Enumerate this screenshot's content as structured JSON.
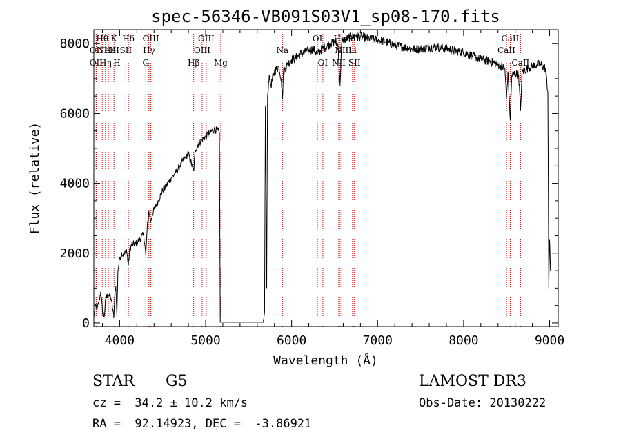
{
  "chart_data": {
    "type": "line",
    "title": "spec-56346-VB091S03V1_sp08-170.fits",
    "xlabel": "Wavelength (Å)",
    "ylabel": "Flux (relative)",
    "xlim": [
      3700,
      9100
    ],
    "ylim": [
      -100,
      8400
    ],
    "x_ticks": [
      4000,
      5000,
      6000,
      7000,
      8000,
      9000
    ],
    "y_ticks": [
      0,
      2000,
      4000,
      6000,
      8000
    ],
    "line_color": "#000000",
    "marker_color": "#cc0000",
    "spectral_lines": [
      {
        "wavelength": 3727,
        "label": "OII",
        "row": 2
      },
      {
        "wavelength": 3727,
        "label": "OII",
        "row": 1
      },
      {
        "wavelength": 3798,
        "label": "Hθ",
        "row": 0
      },
      {
        "wavelength": 3835,
        "label": "Hη",
        "row": 2
      },
      {
        "wavelength": 3869,
        "label": "NeIII",
        "row": 1
      },
      {
        "wavelength": 3889,
        "label": "He",
        "row": 1
      },
      {
        "wavelength": 3934,
        "label": "K",
        "row": 0
      },
      {
        "wavelength": 3969,
        "label": "H",
        "row": 2
      },
      {
        "wavelength": 4072,
        "label": "SII",
        "row": 1
      },
      {
        "wavelength": 4102,
        "label": "Hδ",
        "row": 0
      },
      {
        "wavelength": 4304,
        "label": "G",
        "row": 2
      },
      {
        "wavelength": 4340,
        "label": "Hγ",
        "row": 1
      },
      {
        "wavelength": 4363,
        "label": "OIII",
        "row": 0
      },
      {
        "wavelength": 4861,
        "label": "Hβ",
        "row": 2
      },
      {
        "wavelength": 4959,
        "label": "OIII",
        "row": 1
      },
      {
        "wavelength": 5007,
        "label": "OIII",
        "row": 0
      },
      {
        "wavelength": 5176,
        "label": "Mg",
        "row": 2
      },
      {
        "wavelength": 5893,
        "label": "Na",
        "row": 1
      },
      {
        "wavelength": 6300,
        "label": "OI",
        "row": 0
      },
      {
        "wavelength": 6363,
        "label": "OI",
        "row": 2
      },
      {
        "wavelength": 6548,
        "label": "NII",
        "row": 2
      },
      {
        "wavelength": 6563,
        "label": "Hα",
        "row": 0
      },
      {
        "wavelength": 6583,
        "label": "NII",
        "row": 1
      },
      {
        "wavelength": 6708,
        "label": "Li",
        "row": 1
      },
      {
        "wavelength": 6716,
        "label": "SII",
        "row": 0
      },
      {
        "wavelength": 6731,
        "label": "SII",
        "row": 2
      },
      {
        "wavelength": 8498,
        "label": "CaII",
        "row": 1
      },
      {
        "wavelength": 8542,
        "label": "CaII",
        "row": 0
      },
      {
        "wavelength": 8662,
        "label": "CaII",
        "row": 2
      }
    ],
    "flux_anchor_points": [
      [
        3700,
        150
      ],
      [
        3720,
        500
      ],
      [
        3740,
        420
      ],
      [
        3760,
        600
      ],
      [
        3780,
        900
      ],
      [
        3800,
        350
      ],
      [
        3820,
        180
      ],
      [
        3840,
        700
      ],
      [
        3860,
        820
      ],
      [
        3880,
        780
      ],
      [
        3900,
        700
      ],
      [
        3920,
        400
      ],
      [
        3933,
        150
      ],
      [
        3945,
        900
      ],
      [
        3955,
        1050
      ],
      [
        3968,
        200
      ],
      [
        3980,
        1500
      ],
      [
        4000,
        1850
      ],
      [
        4020,
        2000
      ],
      [
        4050,
        1950
      ],
      [
        4080,
        2100
      ],
      [
        4102,
        1650
      ],
      [
        4120,
        2150
      ],
      [
        4150,
        2250
      ],
      [
        4200,
        2300
      ],
      [
        4250,
        2450
      ],
      [
        4280,
        2550
      ],
      [
        4304,
        1950
      ],
      [
        4320,
        2700
      ],
      [
        4340,
        3200
      ],
      [
        4360,
        2900
      ],
      [
        4380,
        3100
      ],
      [
        4400,
        3250
      ],
      [
        4450,
        3500
      ],
      [
        4500,
        3800
      ],
      [
        4550,
        3950
      ],
      [
        4600,
        4150
      ],
      [
        4650,
        4300
      ],
      [
        4700,
        4500
      ],
      [
        4750,
        4700
      ],
      [
        4800,
        4850
      ],
      [
        4861,
        4350
      ],
      [
        4880,
        4950
      ],
      [
        4920,
        5150
      ],
      [
        4960,
        5250
      ],
      [
        5000,
        5350
      ],
      [
        5050,
        5450
      ],
      [
        5100,
        5550
      ],
      [
        5150,
        5500
      ],
      [
        5160,
        5450
      ],
      [
        5170,
        20
      ],
      [
        5600,
        20
      ],
      [
        5670,
        20
      ],
      [
        5685,
        300
      ],
      [
        5695,
        6200
      ],
      [
        5710,
        1000
      ],
      [
        5720,
        6500
      ],
      [
        5740,
        7100
      ],
      [
        5760,
        6800
      ],
      [
        5800,
        7200
      ],
      [
        5850,
        7350
      ],
      [
        5880,
        7000
      ],
      [
        5893,
        6400
      ],
      [
        5905,
        7200
      ],
      [
        5950,
        7400
      ],
      [
        6000,
        7550
      ],
      [
        6050,
        7600
      ],
      [
        6100,
        7700
      ],
      [
        6150,
        7750
      ],
      [
        6200,
        7800
      ],
      [
        6250,
        7850
      ],
      [
        6300,
        7700
      ],
      [
        6350,
        7850
      ],
      [
        6400,
        7900
      ],
      [
        6450,
        8000
      ],
      [
        6500,
        8050
      ],
      [
        6540,
        7950
      ],
      [
        6563,
        6800
      ],
      [
        6580,
        7950
      ],
      [
        6600,
        8100
      ],
      [
        6650,
        8150
      ],
      [
        6700,
        8200
      ],
      [
        6750,
        8250
      ],
      [
        6800,
        8200
      ],
      [
        6900,
        8150
      ],
      [
        7000,
        8100
      ],
      [
        7100,
        8050
      ],
      [
        7200,
        7950
      ],
      [
        7300,
        7900
      ],
      [
        7400,
        7850
      ],
      [
        7500,
        7850
      ],
      [
        7600,
        7900
      ],
      [
        7700,
        7900
      ],
      [
        7800,
        7850
      ],
      [
        7900,
        7800
      ],
      [
        8000,
        7750
      ],
      [
        8050,
        7700
      ],
      [
        8100,
        7650
      ],
      [
        8150,
        7600
      ],
      [
        8200,
        7550
      ],
      [
        8300,
        7500
      ],
      [
        8400,
        7400
      ],
      [
        8480,
        7300
      ],
      [
        8498,
        6400
      ],
      [
        8515,
        7200
      ],
      [
        8542,
        5800
      ],
      [
        8560,
        7100
      ],
      [
        8600,
        7150
      ],
      [
        8640,
        7100
      ],
      [
        8662,
        6100
      ],
      [
        8680,
        7200
      ],
      [
        8750,
        7300
      ],
      [
        8800,
        7350
      ],
      [
        8850,
        7400
      ],
      [
        8900,
        7400
      ],
      [
        8950,
        7300
      ],
      [
        8980,
        6600
      ],
      [
        8990,
        1000
      ],
      [
        9000,
        2400
      ],
      [
        9010,
        1500
      ]
    ]
  },
  "info": {
    "object_type": "STAR",
    "subclass": "G5",
    "survey": "LAMOST DR3",
    "redshift": "cz =  34.2 ± 10.2 km/s",
    "obs_date": "Obs-Date: 20130222",
    "coords": "RA =  92.14923, DEC =  -3.86921"
  }
}
